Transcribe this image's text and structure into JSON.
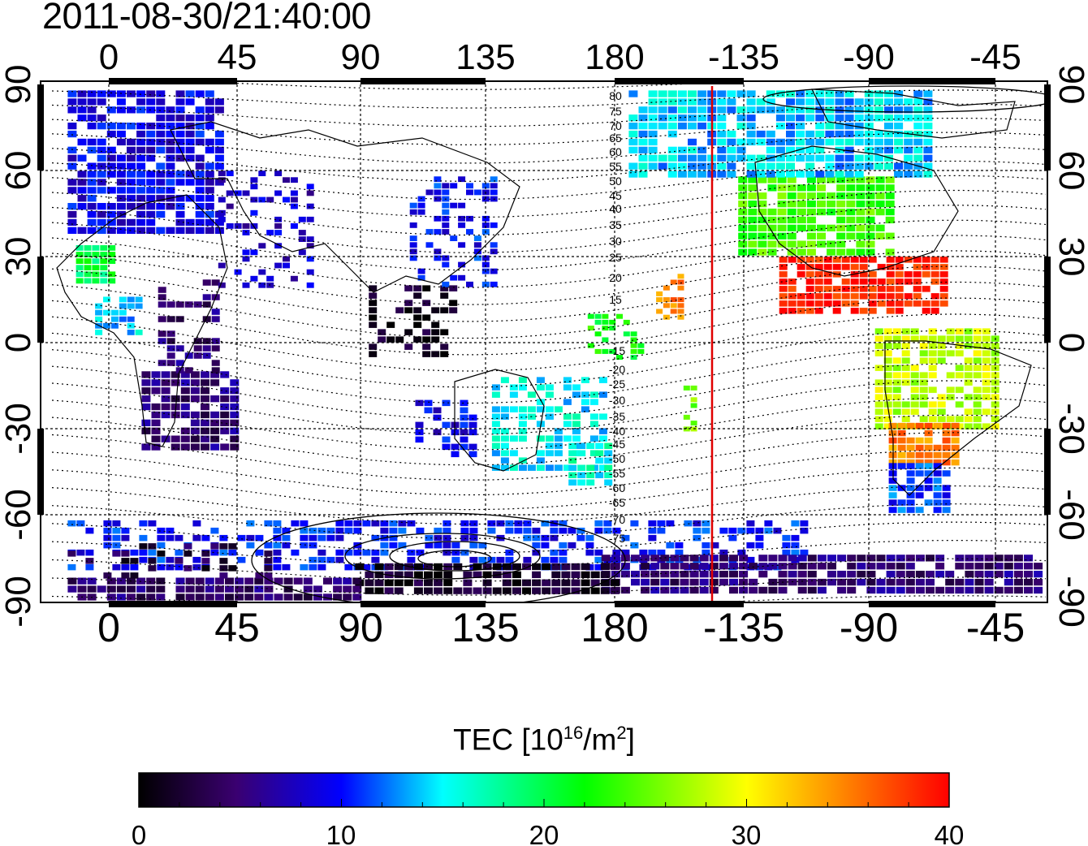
{
  "title": "2011-08-30/21:40:00",
  "map": {
    "x_ticks": [
      "0",
      "45",
      "90",
      "135",
      "180",
      "-135",
      "-90",
      "-45"
    ],
    "y_ticks_left": [
      "90",
      "60",
      "30",
      "0",
      "-30",
      "-60",
      "-90"
    ],
    "y_ticks_right": [
      "90",
      "60",
      "30",
      "0",
      "-30",
      "-60",
      "-90"
    ],
    "magnetic_latitude_labels_north": [
      "80",
      "75",
      "70",
      "65",
      "60",
      "55",
      "50",
      "45",
      "40",
      "35",
      "30",
      "25",
      "20",
      "15"
    ],
    "magnetic_latitude_labels_south": [
      "-15",
      "-20",
      "-25",
      "-30",
      "-35",
      "-40",
      "-45",
      "-50",
      "-55",
      "-60",
      "-65",
      "-70",
      "-75"
    ],
    "terminator_line_color": "#e00000",
    "grid": true
  },
  "colorbar": {
    "label_main": "TEC  [10",
    "label_sup1": "16",
    "label_mid": "/m",
    "label_sup2": "2",
    "label_end": "]",
    "ticks": [
      "0",
      "10",
      "20",
      "30",
      "40"
    ],
    "range": [
      0,
      40
    ],
    "colors": [
      "#000000",
      "#3a0070",
      "#0000ff",
      "#00ffff",
      "#00ff00",
      "#ffff00",
      "#ff0000"
    ]
  }
}
